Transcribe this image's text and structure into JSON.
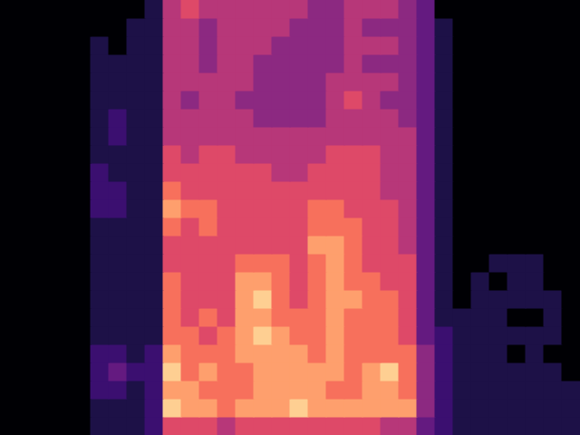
{
  "chart_data": {
    "type": "heatmap",
    "tick_labels": false,
    "xlim": [
      0,
      32
    ],
    "ylim": [
      0,
      24
    ],
    "zlim": [
      0,
      10
    ],
    "z": [
      [
        0,
        0,
        0,
        0,
        0,
        1,
        1,
        1,
        2,
        6,
        6,
        6,
        5,
        6,
        6,
        6,
        6,
        6,
        6,
        6,
        6,
        5,
        5,
        3,
        2,
        1,
        1,
        1,
        1,
        1,
        1,
        1
      ],
      [
        0,
        0,
        0,
        0,
        0,
        1,
        1,
        1,
        2,
        9,
        8,
        8,
        7,
        8,
        8,
        8,
        9,
        8,
        8,
        8,
        8,
        8,
        8,
        4,
        2,
        1,
        1,
        1,
        1,
        1,
        1,
        1
      ],
      [
        0,
        0,
        0,
        0,
        0,
        2,
        2,
        1,
        2,
        8,
        8,
        7,
        7,
        7,
        8,
        8,
        8,
        8,
        7,
        7,
        8,
        8,
        7,
        4,
        2,
        1,
        1,
        1,
        1,
        1,
        1,
        1
      ],
      [
        0,
        0,
        0,
        0,
        0,
        2,
        3,
        2,
        2,
        9,
        7,
        8,
        7,
        7,
        8,
        8,
        8,
        8,
        8,
        7,
        8,
        9,
        7,
        4,
        2,
        1,
        1,
        1,
        1,
        1,
        1,
        0
      ],
      [
        0,
        0,
        0,
        0,
        0,
        2,
        2,
        1,
        2,
        8,
        7,
        7,
        7,
        8,
        8,
        8,
        8,
        7,
        8,
        7,
        7,
        7,
        7,
        4,
        2,
        1,
        1,
        1,
        0,
        1,
        0,
        0
      ],
      [
        0,
        0,
        0,
        0,
        0,
        1,
        1,
        1,
        1,
        7,
        7,
        6,
        7,
        8,
        9,
        8,
        7,
        7,
        8,
        7,
        7,
        7,
        6,
        3,
        2,
        1,
        1,
        1,
        1,
        1,
        1,
        0
      ],
      [
        0,
        0,
        0,
        0,
        0,
        1,
        1,
        1,
        1,
        7,
        6,
        7,
        6,
        8,
        8,
        7,
        7,
        7,
        8,
        7,
        7,
        7,
        6,
        3,
        1,
        1,
        1,
        1,
        0,
        0,
        1,
        0
      ],
      [
        0,
        0,
        0,
        0,
        0,
        1,
        1,
        1,
        1,
        7,
        6,
        6,
        6,
        8,
        9,
        7,
        6,
        7,
        8,
        8,
        7,
        7,
        6,
        3,
        1,
        0,
        1,
        1,
        1,
        1,
        1,
        0
      ],
      [
        0,
        0,
        0,
        0,
        0,
        1,
        1,
        1,
        1,
        7,
        6,
        6,
        6,
        8,
        8,
        7,
        6,
        7,
        8,
        7,
        7,
        6,
        6,
        3,
        1,
        0,
        1,
        0,
        1,
        1,
        0,
        0
      ],
      [
        0,
        0,
        0,
        0,
        0,
        1,
        1,
        1,
        1,
        6,
        6,
        6,
        6,
        7,
        7,
        7,
        6,
        7,
        8,
        7,
        6,
        6,
        6,
        3,
        1,
        0,
        0,
        1,
        1,
        1,
        0,
        0
      ],
      [
        0,
        0,
        0,
        0,
        0,
        1,
        1,
        1,
        1,
        6,
        6,
        6,
        6,
        6,
        6,
        6,
        6,
        8,
        8,
        7,
        6,
        6,
        5,
        3,
        1,
        0,
        0,
        0,
        0,
        0,
        0,
        0
      ],
      [
        0,
        0,
        0,
        0,
        0,
        1,
        1,
        1,
        1,
        7,
        6,
        7,
        6,
        6,
        6,
        6,
        6,
        7,
        7,
        7,
        6,
        6,
        5,
        3,
        1,
        0,
        0,
        0,
        0,
        0,
        0,
        0
      ],
      [
        0,
        0,
        0,
        0,
        0,
        2,
        2,
        1,
        1,
        8,
        7,
        7,
        6,
        6,
        6,
        6,
        6,
        7,
        7,
        6,
        6,
        6,
        5,
        3,
        1,
        0,
        0,
        0,
        0,
        0,
        0,
        0
      ],
      [
        0,
        0,
        0,
        0,
        0,
        2,
        2,
        1,
        1,
        7,
        6,
        6,
        6,
        6,
        6,
        6,
        6,
        6,
        6,
        6,
        6,
        5,
        5,
        3,
        1,
        0,
        0,
        0,
        0,
        0,
        0,
        0
      ],
      [
        0,
        0,
        0,
        0,
        0,
        2,
        1,
        1,
        1,
        6,
        6,
        6,
        6,
        6,
        6,
        5,
        5,
        6,
        6,
        6,
        6,
        5,
        5,
        3,
        1,
        0,
        0,
        0,
        0,
        0,
        0,
        0
      ],
      [
        0,
        0,
        0,
        0,
        0,
        1,
        1,
        1,
        1,
        6,
        5,
        6,
        6,
        5,
        5,
        5,
        5,
        5,
        6,
        6,
        6,
        5,
        5,
        3,
        1,
        0,
        0,
        0,
        0,
        0,
        0,
        0
      ],
      [
        0,
        0,
        0,
        0,
        0,
        1,
        2,
        1,
        1,
        5,
        5,
        5,
        5,
        5,
        5,
        5,
        5,
        5,
        5,
        5,
        5,
        5,
        5,
        3,
        1,
        0,
        0,
        0,
        0,
        0,
        0,
        0
      ],
      [
        0,
        0,
        0,
        0,
        0,
        1,
        2,
        1,
        1,
        5,
        5,
        5,
        5,
        5,
        4,
        4,
        4,
        4,
        5,
        5,
        5,
        5,
        4,
        3,
        1,
        0,
        0,
        0,
        0,
        0,
        0,
        0
      ],
      [
        0,
        0,
        0,
        0,
        0,
        1,
        1,
        1,
        1,
        5,
        4,
        5,
        5,
        4,
        4,
        4,
        4,
        4,
        5,
        6,
        5,
        4,
        4,
        3,
        1,
        0,
        0,
        0,
        0,
        0,
        0,
        0
      ],
      [
        0,
        0,
        0,
        0,
        0,
        1,
        1,
        1,
        1,
        5,
        5,
        5,
        5,
        5,
        4,
        4,
        4,
        4,
        5,
        5,
        5,
        5,
        4,
        3,
        1,
        0,
        0,
        0,
        0,
        0,
        0,
        0
      ],
      [
        0,
        0,
        0,
        0,
        0,
        1,
        1,
        1,
        1,
        5,
        5,
        4,
        5,
        5,
        4,
        4,
        4,
        4,
        4,
        5,
        4,
        4,
        4,
        3,
        1,
        0,
        0,
        0,
        0,
        0,
        0,
        0
      ],
      [
        0,
        0,
        0,
        0,
        0,
        1,
        0,
        1,
        1,
        5,
        5,
        4,
        5,
        5,
        5,
        4,
        4,
        4,
        4,
        5,
        5,
        5,
        4,
        3,
        1,
        0,
        0,
        0,
        0,
        0,
        0,
        0
      ],
      [
        0,
        0,
        0,
        0,
        0,
        0,
        0,
        1,
        1,
        5,
        5,
        4,
        5,
        5,
        5,
        5,
        4,
        4,
        4,
        5,
        4,
        4,
        4,
        3,
        1,
        0,
        0,
        0,
        0,
        0,
        0,
        0
      ],
      [
        0,
        0,
        0,
        0,
        0,
        0,
        0,
        0,
        1,
        5,
        6,
        5,
        5,
        5,
        5,
        5,
        5,
        4,
        4,
        5,
        5,
        5,
        4,
        3,
        0,
        0,
        0,
        0,
        0,
        0,
        0,
        0
      ]
    ]
  }
}
